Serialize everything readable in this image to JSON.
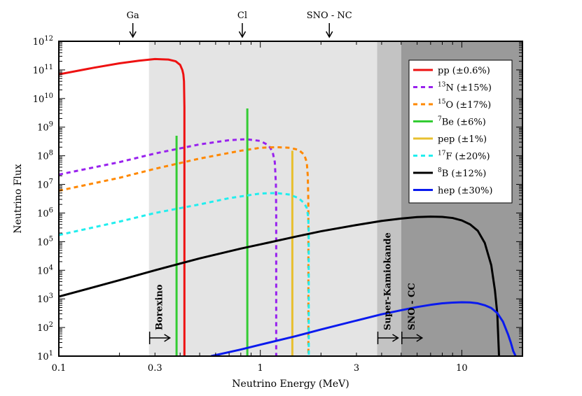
{
  "chart_data": {
    "type": "line",
    "title": "",
    "xlabel": "Neutrino Energy (MeV)",
    "ylabel": "Neutrino Flux",
    "xscale": "log",
    "yscale": "log",
    "xlim": [
      0.1,
      20
    ],
    "ylim": [
      10,
      1000000000000.0
    ],
    "grid": false,
    "legend_position": "top-right",
    "x_ticks": [
      {
        "value": 0.1,
        "label": "0.1"
      },
      {
        "value": 0.3,
        "label": "0.3"
      },
      {
        "value": 1,
        "label": "1"
      },
      {
        "value": 3,
        "label": "3"
      },
      {
        "value": 10,
        "label": "10"
      }
    ],
    "y_ticks": [
      {
        "exp": 1,
        "base": "10",
        "sup": "1"
      },
      {
        "exp": 2,
        "base": "10",
        "sup": "2"
      },
      {
        "exp": 3,
        "base": "10",
        "sup": "3"
      },
      {
        "exp": 4,
        "base": "10",
        "sup": "4"
      },
      {
        "exp": 5,
        "base": "10",
        "sup": "5"
      },
      {
        "exp": 6,
        "base": "10",
        "sup": "6"
      },
      {
        "exp": 7,
        "base": "10",
        "sup": "7"
      },
      {
        "exp": 8,
        "base": "10",
        "sup": "8"
      },
      {
        "exp": 9,
        "base": "10",
        "sup": "9"
      },
      {
        "exp": 10,
        "base": "10",
        "sup": "10"
      },
      {
        "exp": 11,
        "base": "10",
        "sup": "11"
      },
      {
        "exp": 12,
        "base": "10",
        "sup": "12"
      }
    ],
    "threshold_markers": [
      {
        "label": "Ga",
        "energy": 0.233
      },
      {
        "label": "Cl",
        "energy": 0.814
      },
      {
        "label": "SNO - NC",
        "energy": 2.2
      }
    ],
    "detector_regions": [
      {
        "label": "Borexino",
        "start": 0.28,
        "end": 3.8,
        "color": "#e4e4e4"
      },
      {
        "label": "Super-Kamiokande",
        "start": 3.8,
        "end": 5.0,
        "color": "#c3c3c3"
      },
      {
        "label": "SNO - CC",
        "start": 5.0,
        "end": 20,
        "color": "#9a9a9a"
      }
    ],
    "series": [
      {
        "name": "pp",
        "sup": "",
        "uncert": "(±0.6%)",
        "color": "#ee1111",
        "dash": "solid",
        "kind": "continuum",
        "x": [
          0.1,
          0.15,
          0.2,
          0.25,
          0.3,
          0.35,
          0.38,
          0.4,
          0.41,
          0.415,
          0.418,
          0.42,
          0.42
        ],
        "y": [
          70000000000.0,
          120000000000.0,
          170000000000.0,
          210000000000.0,
          240000000000.0,
          230000000000.0,
          200000000000.0,
          150000000000.0,
          100000000000.0,
          70000000000.0,
          40000000000.0,
          5000000000.0,
          10
        ]
      },
      {
        "name": "N",
        "sup": "13",
        "uncert": "(±15%)",
        "color": "#9922ee",
        "dash": "dash",
        "kind": "continuum",
        "x": [
          0.1,
          0.2,
          0.3,
          0.5,
          0.7,
          0.85,
          1.0,
          1.1,
          1.15,
          1.18,
          1.195,
          1.199,
          1.199
        ],
        "y": [
          22000000.0,
          60000000.0,
          120000000.0,
          250000000.0,
          350000000.0,
          380000000.0,
          330000000.0,
          230000000.0,
          140000000.0,
          60000000.0,
          10000000.0,
          1000000.0,
          10
        ]
      },
      {
        "name": "O",
        "sup": "15",
        "uncert": "(±17%)",
        "color": "#ff8800",
        "dash": "dash",
        "kind": "continuum",
        "x": [
          0.1,
          0.2,
          0.3,
          0.5,
          0.8,
          1.0,
          1.2,
          1.4,
          1.55,
          1.65,
          1.7,
          1.72,
          1.73,
          1.732,
          1.732
        ],
        "y": [
          6000000.0,
          17000000.0,
          35000000.0,
          80000000.0,
          150000000.0,
          190000000.0,
          200000000.0,
          190000000.0,
          160000000.0,
          110000000.0,
          60000000.0,
          20000000.0,
          3000000.0,
          500000.0,
          10
        ]
      },
      {
        "name": "Be",
        "sup": "7",
        "uncert": "(±6%)",
        "color": "#33cc33",
        "dash": "solid",
        "kind": "line",
        "lines": [
          {
            "energy": 0.384,
            "flux": 500000000.0
          },
          {
            "energy": 0.862,
            "flux": 4500000000.0
          }
        ]
      },
      {
        "name": "pep",
        "sup": "",
        "uncert": "(±1%)",
        "color": "#e8c030",
        "dash": "solid",
        "kind": "line",
        "lines": [
          {
            "energy": 1.442,
            "flux": 150000000.0
          }
        ]
      },
      {
        "name": "F",
        "sup": "17",
        "uncert": "(±20%)",
        "color": "#22eeee",
        "dash": "dash",
        "kind": "continuum",
        "x": [
          0.1,
          0.2,
          0.3,
          0.5,
          0.7,
          0.9,
          1.0,
          1.2,
          1.4,
          1.55,
          1.65,
          1.7,
          1.725,
          1.738,
          1.74
        ],
        "y": [
          170000.0,
          500000.0,
          1000000.0,
          2000000.0,
          3300000.0,
          4300000.0,
          4800000.0,
          5000000.0,
          4400000.0,
          3300000.0,
          2200000.0,
          1500000.0,
          800000.0,
          300000.0,
          10
        ]
      },
      {
        "name": "B",
        "sup": "8",
        "uncert": "(±12%)",
        "color": "#000000",
        "dash": "solid",
        "kind": "continuum",
        "x": [
          0.1,
          0.2,
          0.3,
          0.5,
          0.8,
          1.0,
          1.5,
          2.0,
          3.0,
          4.0,
          5.0,
          6.0,
          7.0,
          8.0,
          9.0,
          10.0,
          11.0,
          12.0,
          13.0,
          14.0,
          14.6,
          15.0,
          15.3
        ],
        "y": [
          1200.0,
          4500.0,
          10000.0,
          26000.0,
          57000.0,
          80000.0,
          150000.0,
          230000.0,
          380000.0,
          530000.0,
          640000.0,
          720000.0,
          750000.0,
          730000.0,
          670000.0,
          550000.0,
          400000.0,
          240000.0,
          90000.0,
          15000.0,
          2000.0,
          300,
          10
        ]
      },
      {
        "name": "hep",
        "sup": "",
        "uncert": "(±30%)",
        "color": "#0a1aee",
        "dash": "solid",
        "kind": "continuum",
        "x": [
          0.57,
          0.8,
          1.0,
          1.5,
          2.0,
          3.0,
          4.0,
          5.0,
          6.0,
          7.0,
          8.0,
          9.0,
          10.0,
          11.0,
          12.0,
          13.0,
          14.0,
          15.0,
          16.0,
          17.0,
          17.5,
          18.0,
          18.5
        ],
        "y": [
          10,
          17,
          25,
          50,
          85,
          175,
          290,
          400,
          520,
          620,
          700,
          740,
          760,
          750,
          700,
          600,
          480,
          320,
          160,
          55,
          30,
          15,
          10
        ]
      }
    ]
  }
}
